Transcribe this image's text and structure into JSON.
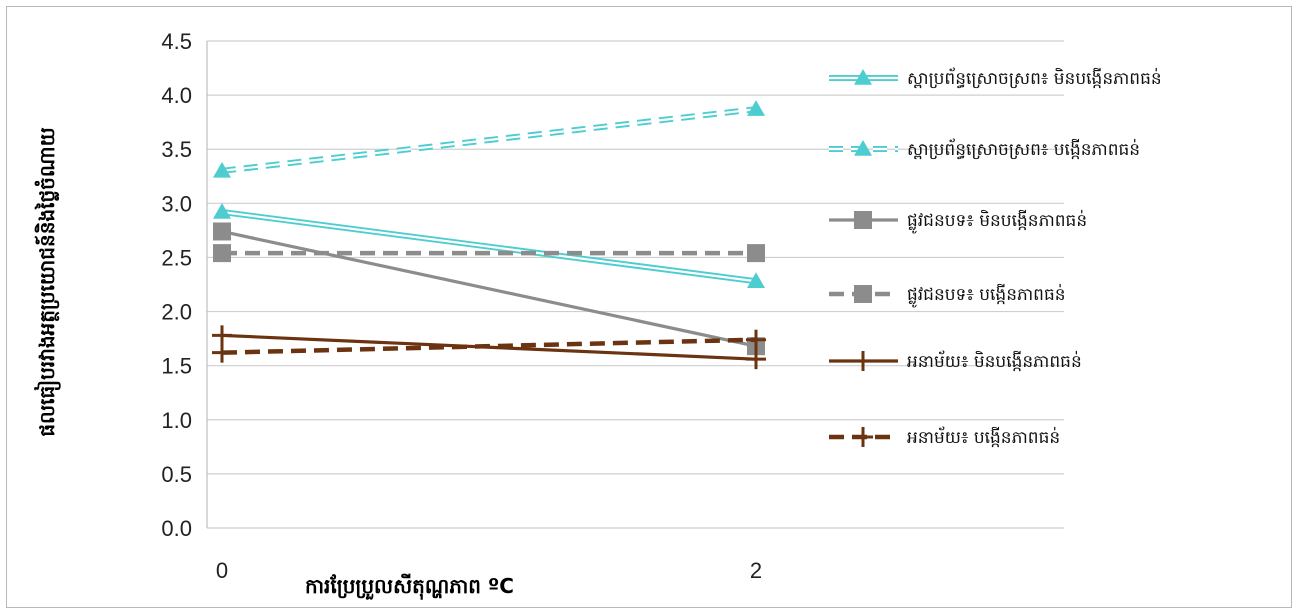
{
  "chart_data": {
    "type": "line",
    "xlabel": "ការប្រែប្រួលសីតុណ្ហភាព ºC",
    "ylabel": "ផលធៀបរវាងអត្ថប្រយោជន៍និងថ្លៃចំណាយ",
    "x": [
      "0",
      "2"
    ],
    "ylim": [
      0,
      4.5
    ],
    "yticks": [
      "0.0",
      "0.5",
      "1.0",
      "1.5",
      "2.0",
      "2.5",
      "3.0",
      "3.5",
      "4.0",
      "4.5"
    ],
    "grid": true,
    "legend_position": "right",
    "series": [
      {
        "name": "ស្ពាប្រព័ន្ធស្រោចស្រព៖ មិនបង្កើនភាពធន់",
        "values": [
          2.92,
          2.28
        ],
        "color": "#4ecdd0",
        "marker": "triangle",
        "dash": "double"
      },
      {
        "name": "ស្ពាប្រព័ន្ធស្រោចស្រព៖ បង្កើនភាពធន់",
        "values": [
          3.3,
          3.87
        ],
        "color": "#4ecdd0",
        "marker": "triangle",
        "dash": "dashed-outline"
      },
      {
        "name": "ផ្លូវជនបទ៖ មិនបង្កើនភាពធន់",
        "values": [
          2.74,
          1.68
        ],
        "color": "#8c8c8c",
        "marker": "square",
        "dash": "solid"
      },
      {
        "name": "ផ្លូវជនបទ៖ បង្កើនភាពធន់",
        "values": [
          2.54,
          2.54
        ],
        "color": "#8c8c8c",
        "marker": "square",
        "dash": "dashed"
      },
      {
        "name": "អនាម័យ៖ មិនបង្កើនភាពធន់",
        "values": [
          1.78,
          1.56
        ],
        "color": "#6b3310",
        "marker": "plus",
        "dash": "solid"
      },
      {
        "name": "អនាម័យ៖ បង្កើនភាពធន់",
        "values": [
          1.62,
          1.74
        ],
        "color": "#6b3310",
        "marker": "plus",
        "dash": "dashed"
      }
    ]
  }
}
